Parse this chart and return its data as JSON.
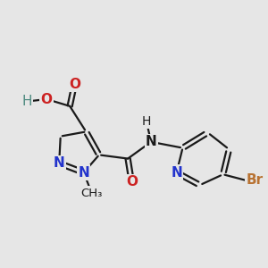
{
  "bg_color": "#e6e6e6",
  "bond_color": "#1a1a1a",
  "bond_width": 1.6,
  "figsize": [
    3.0,
    3.0
  ],
  "dpi": 100,
  "xlim": [
    0.3,
    5.8
  ],
  "ylim": [
    0.5,
    4.2
  ]
}
